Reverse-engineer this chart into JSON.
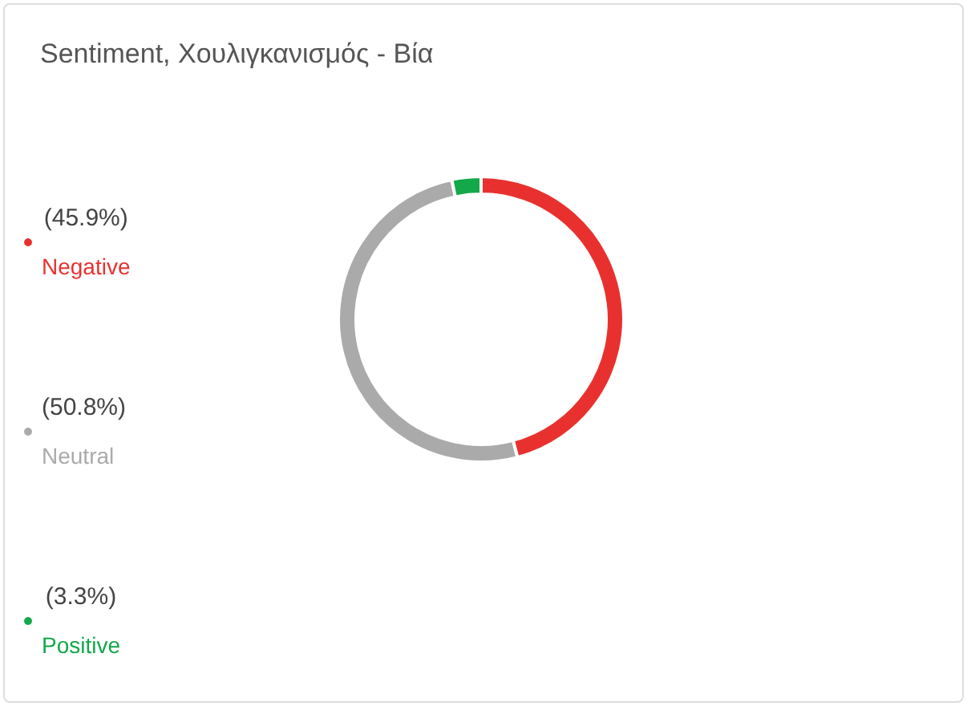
{
  "chart_data": {
    "type": "donut",
    "title": "Sentiment, Χουλιγκανισμός - Βία",
    "categories": [
      "Negative",
      "Neutral",
      "Positive"
    ],
    "values": [
      45.9,
      50.8,
      3.3
    ],
    "value_labels": [
      "(45.9%)",
      "(50.8%)",
      "(3.3%)"
    ],
    "colors": [
      "#e8312f",
      "#aaaaaa",
      "#13a84a"
    ],
    "legend": "left"
  }
}
